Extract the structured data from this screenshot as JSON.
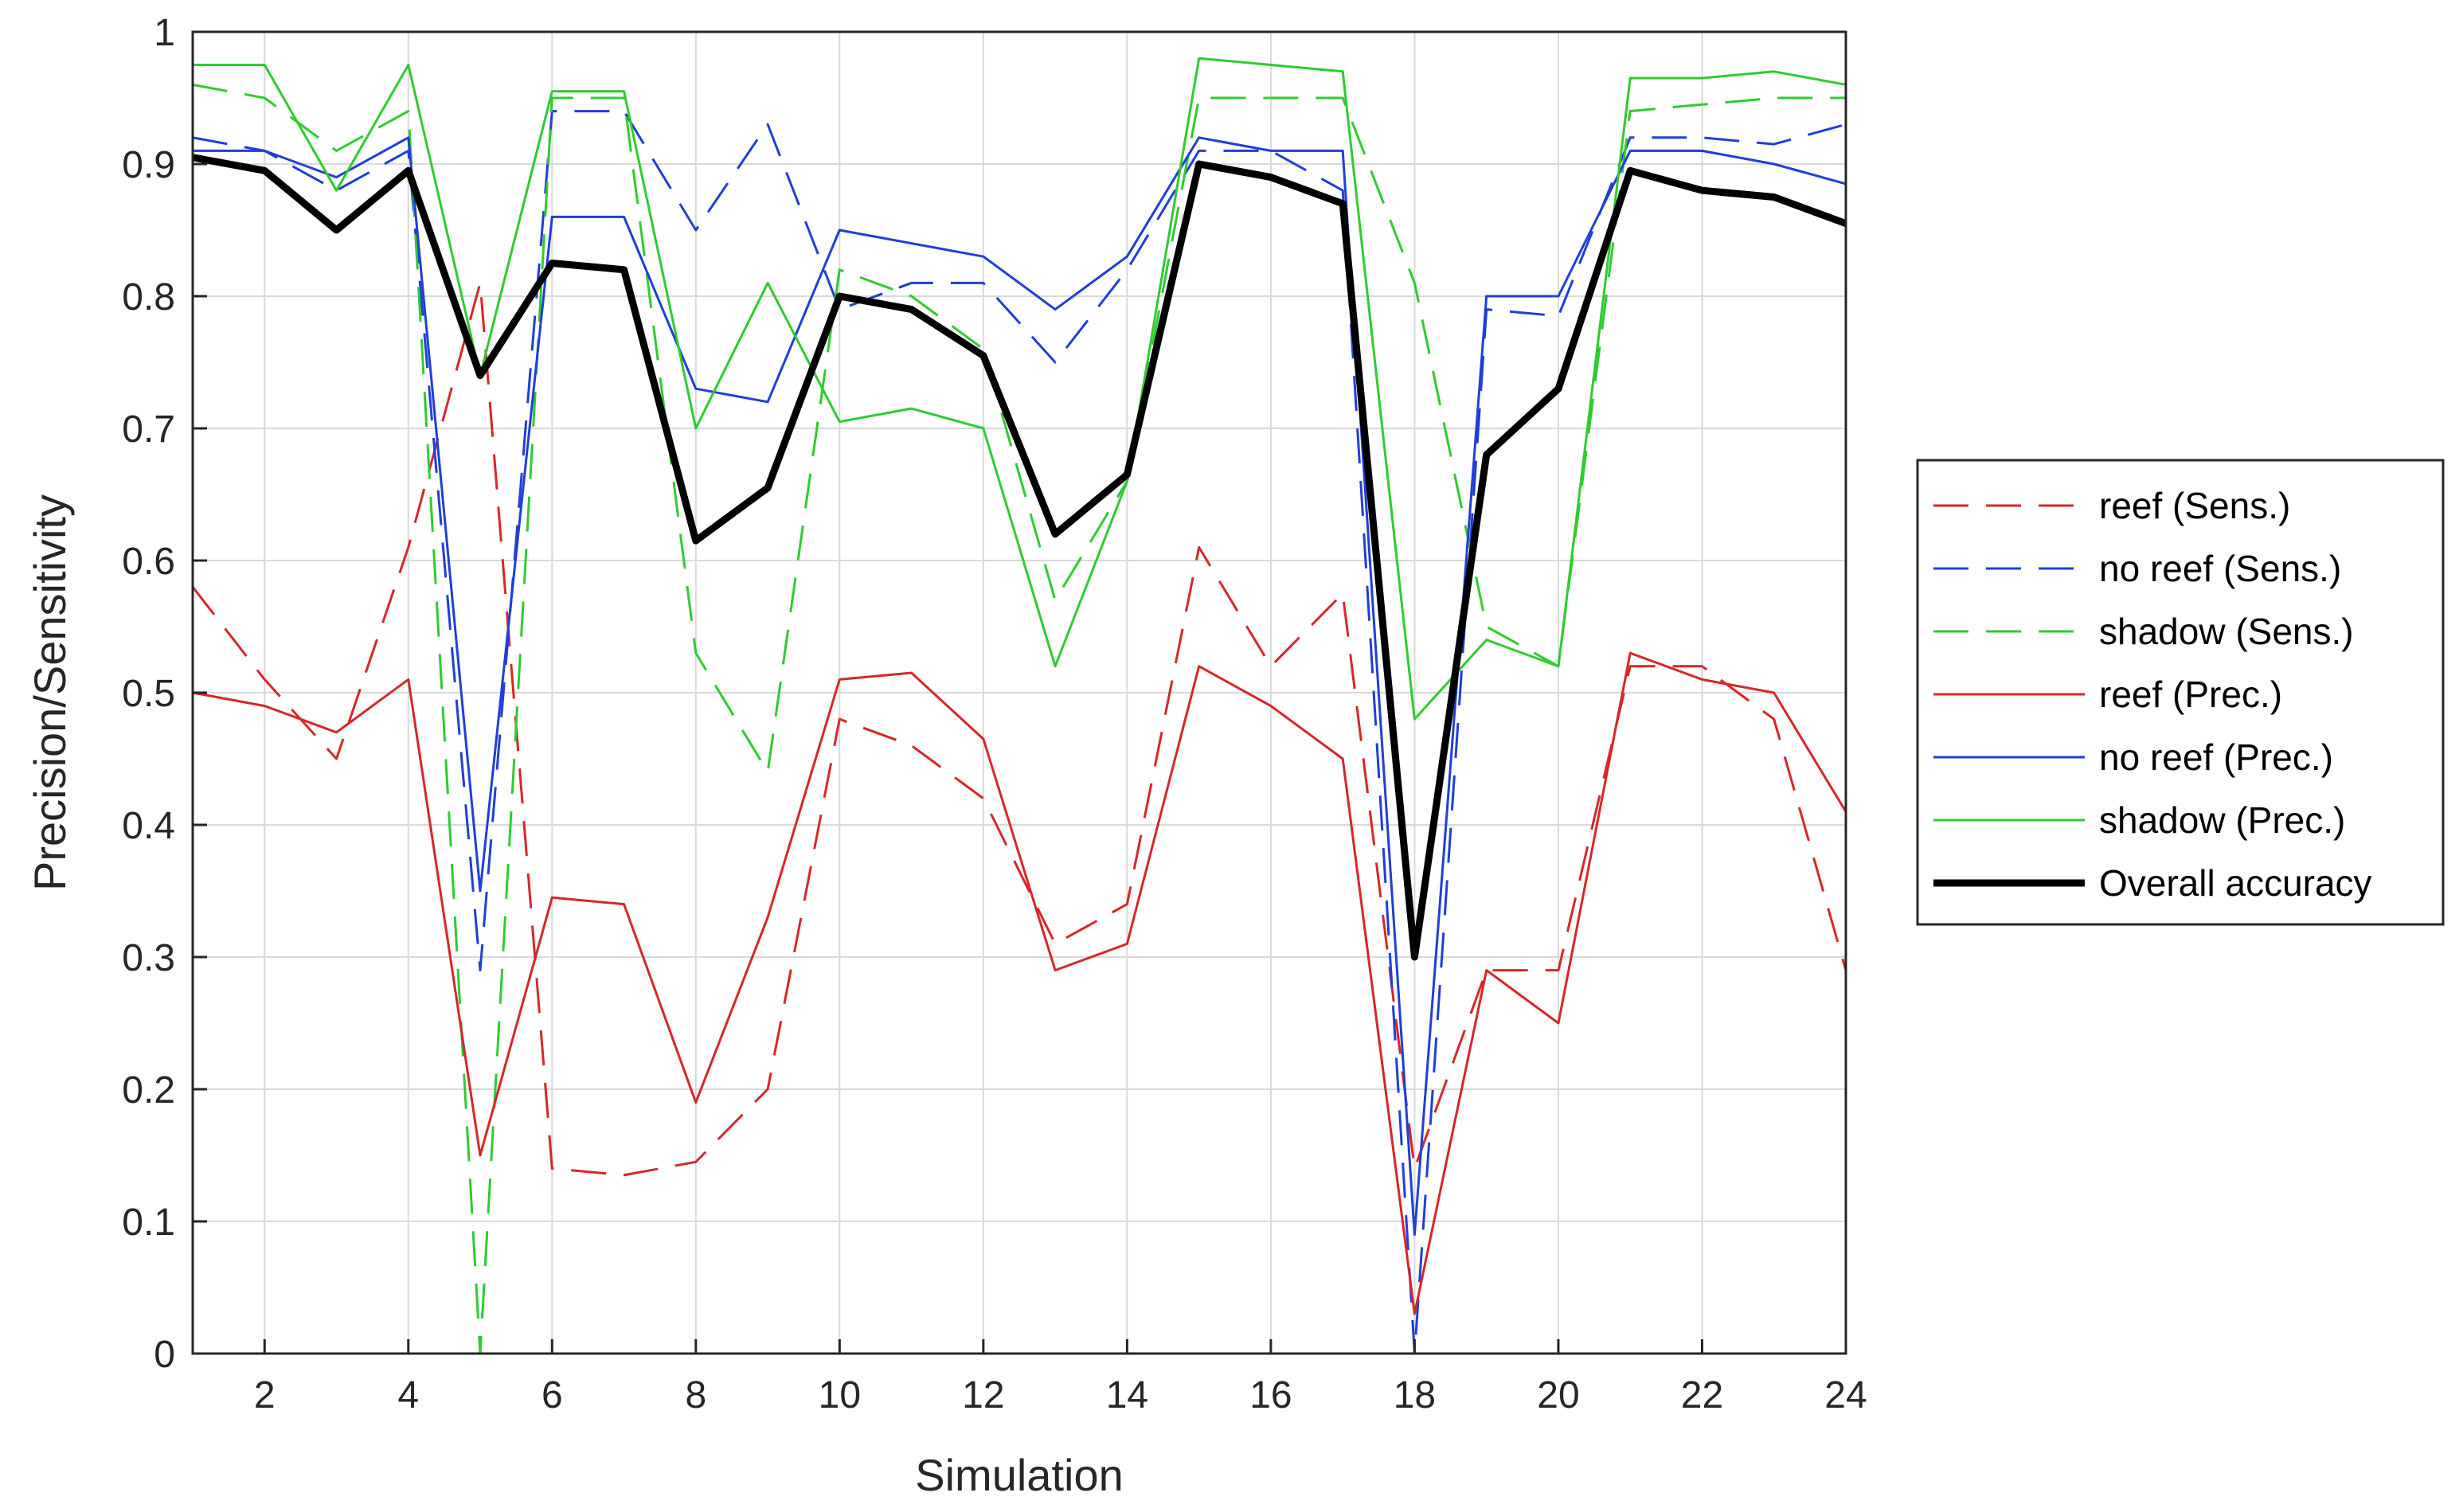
{
  "chart_data": {
    "type": "line",
    "xlabel": "Simulation",
    "ylabel": "Precision/Sensitivity",
    "xlim": [
      1,
      24
    ],
    "ylim": [
      0,
      1
    ],
    "grid": true,
    "legend_position": "right",
    "x": [
      1,
      2,
      3,
      4,
      5,
      6,
      7,
      8,
      9,
      10,
      11,
      12,
      13,
      14,
      15,
      16,
      17,
      18,
      19,
      20,
      21,
      22,
      23,
      24
    ],
    "x_ticks": [
      "2",
      "4",
      "6",
      "8",
      "10",
      "12",
      "14",
      "16",
      "18",
      "20",
      "22",
      "24"
    ],
    "x_tick_values": [
      2,
      4,
      6,
      8,
      10,
      12,
      14,
      16,
      18,
      20,
      22,
      24
    ],
    "y_ticks": [
      "0",
      "0.1",
      "0.2",
      "0.3",
      "0.4",
      "0.5",
      "0.6",
      "0.7",
      "0.8",
      "0.9",
      "1"
    ],
    "y_tick_values": [
      0,
      0.1,
      0.2,
      0.3,
      0.4,
      0.5,
      0.6,
      0.7,
      0.8,
      0.9,
      1
    ],
    "series": [
      {
        "name": "reef (Sens.)",
        "color": "#d62728",
        "style": "dashed",
        "width": 3,
        "values": [
          0.58,
          0.51,
          0.45,
          0.61,
          0.81,
          0.14,
          0.135,
          0.145,
          0.2,
          0.48,
          0.46,
          0.42,
          0.31,
          0.34,
          0.61,
          0.52,
          0.575,
          0.14,
          0.29,
          0.29,
          0.52,
          0.52,
          0.48,
          0.29
        ]
      },
      {
        "name": "no reef (Sens.)",
        "color": "#1f3fd6",
        "style": "dashed",
        "width": 3,
        "values": [
          0.92,
          0.91,
          0.88,
          0.91,
          0.29,
          0.94,
          0.94,
          0.85,
          0.93,
          0.79,
          0.81,
          0.81,
          0.75,
          0.82,
          0.91,
          0.91,
          0.88,
          0.0,
          0.79,
          0.785,
          0.92,
          0.92,
          0.915,
          0.93
        ]
      },
      {
        "name": "shadow (Sens.)",
        "color": "#2ecc2e",
        "style": "dashed",
        "width": 3,
        "values": [
          0.96,
          0.95,
          0.91,
          0.94,
          0.0,
          0.95,
          0.95,
          0.53,
          0.44,
          0.82,
          0.8,
          0.76,
          0.57,
          0.66,
          0.95,
          0.95,
          0.95,
          0.81,
          0.55,
          0.52,
          0.94,
          0.945,
          0.95,
          0.95
        ]
      },
      {
        "name": "reef (Prec.)",
        "color": "#d62728",
        "style": "solid",
        "width": 3,
        "values": [
          0.5,
          0.49,
          0.47,
          0.51,
          0.15,
          0.345,
          0.34,
          0.19,
          0.33,
          0.51,
          0.515,
          0.465,
          0.29,
          0.31,
          0.52,
          0.49,
          0.45,
          0.03,
          0.29,
          0.25,
          0.53,
          0.51,
          0.5,
          0.41
        ]
      },
      {
        "name": "no reef (Prec.)",
        "color": "#1f3fd6",
        "style": "solid",
        "width": 3,
        "values": [
          0.91,
          0.91,
          0.89,
          0.92,
          0.35,
          0.86,
          0.86,
          0.73,
          0.72,
          0.85,
          0.84,
          0.83,
          0.79,
          0.83,
          0.92,
          0.91,
          0.91,
          0.09,
          0.8,
          0.8,
          0.91,
          0.91,
          0.9,
          0.885
        ]
      },
      {
        "name": "shadow (Prec.)",
        "color": "#2ecc2e",
        "style": "solid",
        "width": 3,
        "values": [
          0.975,
          0.975,
          0.88,
          0.975,
          0.74,
          0.955,
          0.955,
          0.7,
          0.81,
          0.705,
          0.715,
          0.7,
          0.52,
          0.66,
          0.98,
          0.975,
          0.97,
          0.48,
          0.54,
          0.52,
          0.965,
          0.965,
          0.97,
          0.96
        ]
      },
      {
        "name": "Overall accuracy",
        "color": "#000000",
        "style": "solid",
        "width": 9,
        "values": [
          0.905,
          0.895,
          0.85,
          0.895,
          0.74,
          0.825,
          0.82,
          0.615,
          0.655,
          0.8,
          0.79,
          0.755,
          0.62,
          0.665,
          0.9,
          0.89,
          0.87,
          0.3,
          0.68,
          0.73,
          0.895,
          0.88,
          0.875,
          0.855
        ]
      }
    ]
  }
}
